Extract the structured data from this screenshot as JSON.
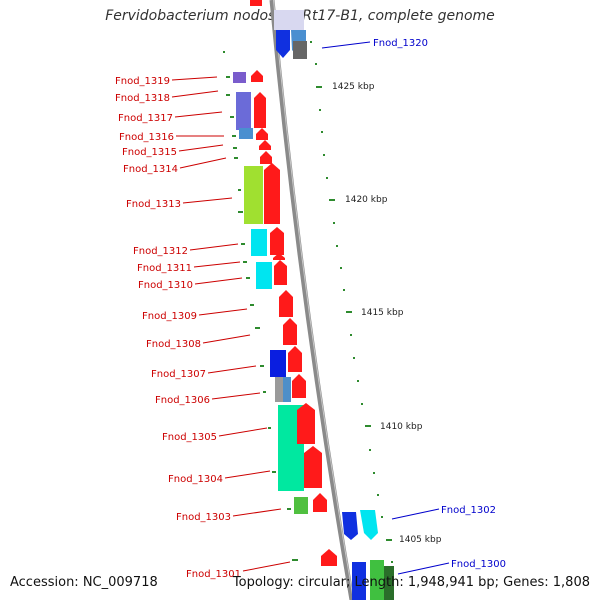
{
  "title": "Fervidobacterium nodosum Rt17-B1, complete genome",
  "footer": {
    "accession": "Accession: NC_009718",
    "topology": "Topology: circular; Length: 1,948,941 bp; Genes: 1,808"
  },
  "colors": {
    "label_left": "#cc0000",
    "label_right": "#0000cc",
    "backbone": "#8a8a8a",
    "tick": "#2e8b2e",
    "arrow": "#ff0000"
  },
  "scale_labels": [
    "1425 kbp",
    "1420 kbp",
    "1415 kbp",
    "1410 kbp",
    "1405 kbp"
  ],
  "left_labels": [
    "Fnod_1319",
    "Fnod_1318",
    "Fnod_1317",
    "Fnod_1316",
    "Fnod_1315",
    "Fnod_1314",
    "Fnod_1313",
    "Fnod_1312",
    "Fnod_1311",
    "Fnod_1310",
    "Fnod_1309",
    "Fnod_1308",
    "Fnod_1307",
    "Fnod_1306",
    "Fnod_1305",
    "Fnod_1304",
    "Fnod_1303",
    "Fnod_1301"
  ],
  "right_labels": [
    "Fnod_1320",
    "Fnod_1302",
    "Fnod_1300"
  ]
}
